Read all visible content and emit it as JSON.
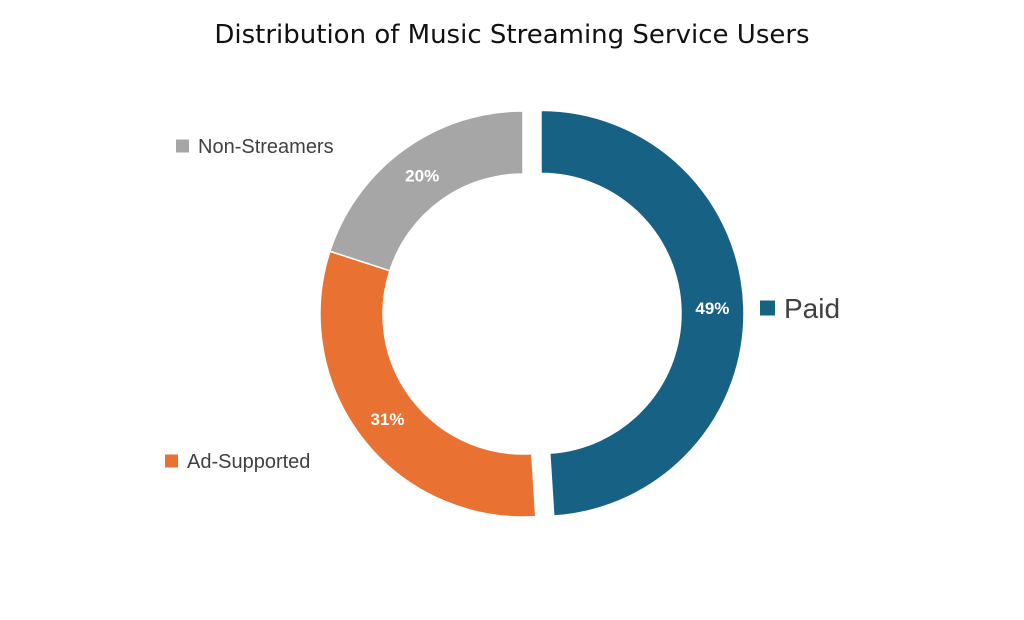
{
  "chart_data": {
    "type": "pie",
    "variant": "donut",
    "title": "Distribution of Music Streaming Service Users",
    "slices": [
      {
        "name": "Paid",
        "value": 49,
        "label": "49%",
        "color": "#176184",
        "exploded": true
      },
      {
        "name": "Ad-Supported",
        "value": 31,
        "label": "31%",
        "color": "#E97132",
        "exploded": false
      },
      {
        "name": "Non-Streamers",
        "value": 20,
        "label": "20%",
        "color": "#A6A6A6",
        "exploded": false
      }
    ],
    "legend": "labels beside slices"
  }
}
